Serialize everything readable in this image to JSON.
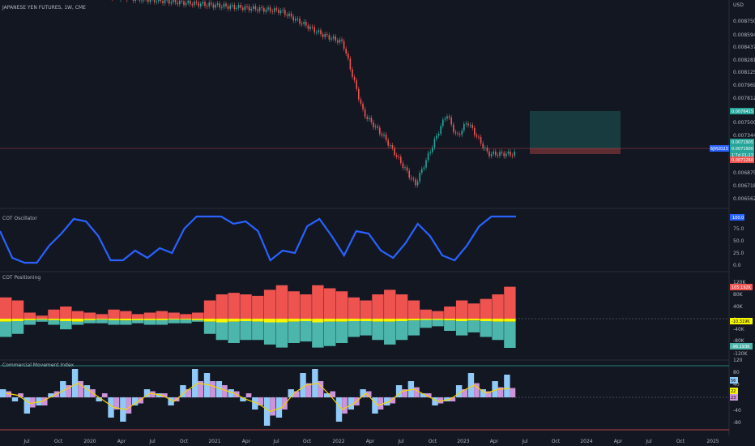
{
  "header": {
    "title": "JAPANESE YEN FUTURES, 1W, CME"
  },
  "price_pane": {
    "currency": "USD",
    "ticks": [
      "0.0087500",
      "0.0085940",
      "0.0084375",
      "0.0082815",
      "0.0081250",
      "0.0079690",
      "0.0078125",
      "0.0075000",
      "0.0073440",
      "0.0068750",
      "0.0067185",
      "0.0065625"
    ],
    "labels": {
      "target": "0.0076415",
      "current": "0.0071905",
      "current2": "0.0071900",
      "countdown": "1'7d 01:23",
      "stop": "0.0071260",
      "symbol": "6JM2023"
    }
  },
  "oscillator_pane": {
    "title": "COT Oscillator",
    "ticks": [
      "75.0",
      "50.0",
      "25.0",
      "0.0"
    ],
    "top_tick": "100",
    "value_label": "100.0"
  },
  "positioning_pane": {
    "title": "COT Positioning",
    "ticks": [
      "120K",
      "80K",
      "40K",
      "0",
      "-40K",
      "-80K",
      "-120K"
    ],
    "value_red": "105.192K",
    "value_yellow": "-10.319K",
    "value_teal": "-96.193K"
  },
  "cmi_pane": {
    "title": "Commercial Movement Index",
    "ticks": [
      "120",
      "80",
      "40",
      "0",
      "-40",
      "-80"
    ],
    "value_blue": "56",
    "value_yellow": "22",
    "value_pink": "23"
  },
  "time_axis": {
    "labels": [
      "Jul",
      "Oct",
      "2020",
      "Apr",
      "Jul",
      "Oct",
      "2021",
      "Apr",
      "Jul",
      "Oct",
      "2022",
      "Apr",
      "Jul",
      "Oct",
      "2023",
      "Apr",
      "Jul",
      "Oct",
      "2024",
      "Apr",
      "Jul",
      "Oct",
      "2025"
    ]
  },
  "chart_data": [
    {
      "type": "candlestick",
      "title": "JAPANESE YEN FUTURES, 1W, CME",
      "ylabel": "USD",
      "x_range": [
        "2019-06",
        "2023-06"
      ],
      "ylim": [
        0.0065,
        0.00885
      ],
      "close_path_approx": [
        {
          "x": "2019-06",
          "y": 0.0093
        },
        {
          "x": "2021-09",
          "y": 0.009
        },
        {
          "x": "2022-01",
          "y": 0.0087
        },
        {
          "x": "2022-03",
          "y": 0.0086
        },
        {
          "x": "2022-05",
          "y": 0.0077
        },
        {
          "x": "2022-07",
          "y": 0.0074
        },
        {
          "x": "2022-10",
          "y": 0.0068
        },
        {
          "x": "2022-11",
          "y": 0.0071
        },
        {
          "x": "2023-01",
          "y": 0.0077
        },
        {
          "x": "2023-02",
          "y": 0.0074
        },
        {
          "x": "2023-03",
          "y": 0.0076
        },
        {
          "x": "2023-05",
          "y": 0.00719
        }
      ],
      "position_tool": {
        "target": 0.0076415,
        "entry": 0.0071905,
        "stop": 0.007126
      }
    },
    {
      "type": "line",
      "title": "COT Oscillator",
      "ylim": [
        0,
        100
      ],
      "series": [
        {
          "values": [
            70,
            15,
            5,
            5,
            40,
            65,
            95,
            90,
            60,
            10,
            10,
            30,
            15,
            35,
            25,
            75,
            100,
            100,
            100,
            85,
            90,
            70,
            10,
            30,
            25,
            80,
            95,
            60,
            20,
            70,
            65,
            30,
            15,
            45,
            85,
            60,
            20,
            10,
            40,
            80,
            100,
            100,
            100
          ]
        }
      ]
    },
    {
      "type": "bar",
      "title": "COT Positioning",
      "ylim": [
        -120,
        120
      ],
      "series": [
        {
          "values": [
            70,
            60,
            20,
            10,
            30,
            40,
            25,
            20,
            15,
            30,
            25,
            15,
            20,
            25,
            20,
            15,
            20,
            60,
            80,
            85,
            80,
            75,
            95,
            110,
            90,
            80,
            110,
            100,
            90,
            70,
            60,
            80,
            95,
            80,
            60,
            30,
            25,
            40,
            60,
            50,
            65,
            80,
            105
          ]
        },
        {
          "values": [
            -10,
            -8,
            -5,
            -3,
            -5,
            -8,
            -10,
            -5,
            -3,
            -5,
            -6,
            -5,
            -5,
            -5,
            -3,
            -3,
            -5,
            -10,
            -12,
            -10,
            -8,
            -10,
            -12,
            -12,
            -10,
            -8,
            -12,
            -10,
            -10,
            -8,
            -8,
            -10,
            -10,
            -8,
            -6,
            -4,
            -4,
            -6,
            -8,
            -6,
            -8,
            -10,
            -10
          ]
        },
        {
          "values": [
            -60,
            -50,
            -20,
            -10,
            -20,
            -35,
            -20,
            -15,
            -15,
            -20,
            -20,
            -15,
            -20,
            -20,
            -15,
            -15,
            -10,
            -50,
            -70,
            -80,
            -70,
            -70,
            -85,
            -95,
            -80,
            -75,
            -95,
            -90,
            -80,
            -60,
            -55,
            -70,
            -85,
            -70,
            -55,
            -30,
            -25,
            -40,
            -55,
            -45,
            -60,
            -70,
            -96
          ]
        }
      ]
    },
    {
      "type": "bar",
      "title": "Commercial Movement Index",
      "ylim": [
        -100,
        120
      ],
      "series": [
        {
          "values": [
            20,
            -10,
            -40,
            -20,
            10,
            40,
            70,
            30,
            -10,
            -50,
            -60,
            -20,
            20,
            10,
            -20,
            30,
            70,
            60,
            40,
            20,
            -10,
            -30,
            -70,
            -50,
            20,
            60,
            70,
            10,
            -60,
            -30,
            20,
            -40,
            -20,
            30,
            40,
            10,
            -20,
            -10,
            30,
            60,
            20,
            40,
            56
          ]
        },
        {
          "values": [
            10,
            5,
            -15,
            -10,
            5,
            20,
            35,
            15,
            -5,
            -25,
            -30,
            -10,
            10,
            5,
            -10,
            15,
            35,
            30,
            20,
            10,
            -5,
            -15,
            -35,
            -25,
            10,
            30,
            35,
            5,
            -30,
            -15,
            10,
            -20,
            -10,
            15,
            20,
            5,
            -10,
            -5,
            15,
            30,
            10,
            20,
            22
          ]
        },
        {
          "values": [
            15,
            10,
            -25,
            -20,
            15,
            30,
            40,
            20,
            10,
            -30,
            -40,
            -15,
            15,
            10,
            -10,
            20,
            40,
            40,
            30,
            15,
            10,
            -20,
            -45,
            -30,
            15,
            35,
            40,
            15,
            -40,
            -20,
            15,
            -30,
            -15,
            20,
            25,
            10,
            -15,
            -10,
            20,
            35,
            15,
            25,
            23
          ]
        }
      ]
    }
  ]
}
